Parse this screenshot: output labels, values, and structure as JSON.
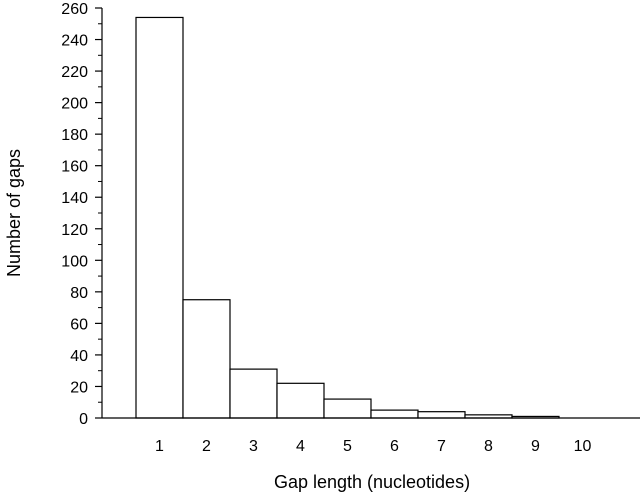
{
  "chart_data": {
    "type": "bar",
    "title": "",
    "xlabel": "Gap length (nucleotides)",
    "ylabel": "Number of gaps",
    "categories": [
      "1",
      "2",
      "3",
      "4",
      "5",
      "6",
      "7",
      "8",
      "9",
      "10"
    ],
    "values": [
      254,
      75,
      31,
      22,
      12,
      5,
      4,
      2,
      1,
      0
    ],
    "ylim": [
      0,
      260
    ],
    "y_ticks": [
      "0",
      "20",
      "40",
      "60",
      "80",
      "100",
      "120",
      "140",
      "160",
      "180",
      "200",
      "220",
      "240",
      "260"
    ],
    "y_minor_step": 10,
    "grid": false,
    "legend": "none",
    "colors": {
      "bar_fill": "#ffffff",
      "bar_stroke": "#000000",
      "axis": "#000000"
    }
  }
}
